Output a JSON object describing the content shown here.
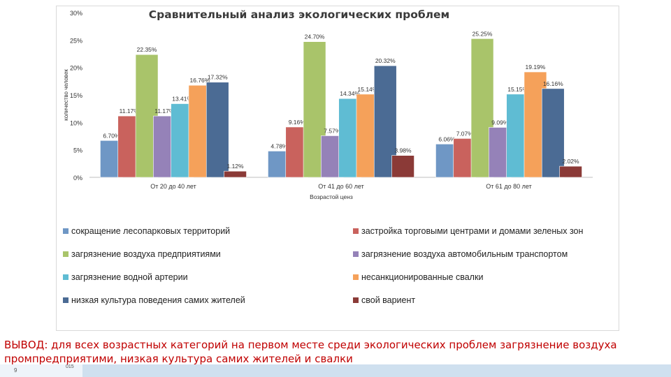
{
  "chart_data": {
    "type": "bar",
    "title": "Сравнительный анализ экологических проблем",
    "xlabel": "Возрастой ценз",
    "ylabel": "количество человек",
    "ylim": [
      0,
      30
    ],
    "yticks": [
      "0%",
      "5%",
      "10%",
      "15%",
      "20%",
      "25%",
      "30%"
    ],
    "categories": [
      "От 20 до 40 лет",
      "От 41 до 60 лет",
      "От 61 до 80 лет"
    ],
    "legend_position": "bottom",
    "series": [
      {
        "name": "сокращение лесопарковых территорий",
        "color": "#6f97c5",
        "values": [
          6.7,
          4.78,
          6.06
        ],
        "labels": [
          "6.70%",
          "4.78%",
          "6.06%"
        ]
      },
      {
        "name": "застройка торговыми центрами и домами зеленых зон",
        "color": "#c9625d",
        "values": [
          11.17,
          9.16,
          7.07
        ],
        "labels": [
          "11.17%",
          "9.16%",
          "7.07%"
        ]
      },
      {
        "name": "загрязнение воздуха предприятиями",
        "color": "#a9c46a",
        "values": [
          22.35,
          24.7,
          25.25
        ],
        "labels": [
          "22.35%",
          "24.70%",
          "25.25%"
        ]
      },
      {
        "name": "загрязнение воздуха автомобильным транспортом",
        "color": "#9582b8",
        "values": [
          11.17,
          7.57,
          9.09
        ],
        "labels": [
          "11.17%",
          "7.57%",
          "9.09%"
        ]
      },
      {
        "name": "загрязнение водной артерии",
        "color": "#5fbcd3",
        "values": [
          13.41,
          14.34,
          15.15
        ],
        "labels": [
          "13.41%",
          "14.34%",
          "15.15%"
        ]
      },
      {
        "name": "несанкционированные свалки",
        "color": "#f5a15a",
        "values": [
          16.76,
          15.14,
          19.19
        ],
        "labels": [
          "16.76%",
          "15.14%",
          "19.19%"
        ]
      },
      {
        "name": "низкая культура поведения самих жителей",
        "color": "#4b6b94",
        "values": [
          17.32,
          20.32,
          16.16
        ],
        "labels": [
          "17.32%",
          "20.32%",
          "16.16%"
        ]
      },
      {
        "name": "свой вариент",
        "color": "#8b3a37",
        "values": [
          1.12,
          3.98,
          2.02
        ],
        "labels": [
          "1.12%",
          "3.98%",
          "2.02%"
        ]
      }
    ]
  },
  "conclusion": "ВЫВОД: для всех возрастных категорий на первом месте среди экологических проблем загрязнение воздуха промпредприятими, низкая культура самих жителей и свалки",
  "footer": {
    "page_number": "9",
    "note": "015"
  }
}
